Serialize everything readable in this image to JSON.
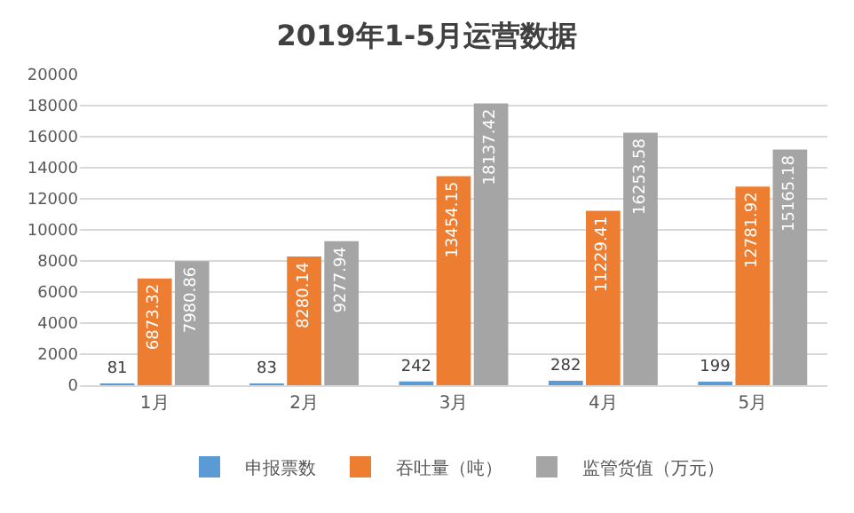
{
  "chart_data": {
    "type": "bar",
    "title": "2019年1-5月运营数据",
    "categories": [
      "1月",
      "2月",
      "3月",
      "4月",
      "5月"
    ],
    "series": [
      {
        "name": "申报票数",
        "color": "#5b9bd5",
        "values": [
          81,
          83,
          242,
          282,
          199
        ]
      },
      {
        "name": "吞吐量（吨）",
        "color": "#ed7d31",
        "values": [
          6873.32,
          8280.14,
          13454.15,
          11229.41,
          12781.92
        ]
      },
      {
        "name": "监管货值（万元）",
        "color": "#a5a5a5",
        "values": [
          7980.86,
          9277.94,
          18137.42,
          16253.58,
          15165.18
        ]
      }
    ],
    "ylim": [
      0,
      20000
    ],
    "yticks": [
      0,
      2000,
      4000,
      6000,
      8000,
      10000,
      12000,
      14000,
      16000,
      18000,
      20000
    ],
    "grid": "y",
    "legend": "bottom",
    "data_labels": true
  }
}
